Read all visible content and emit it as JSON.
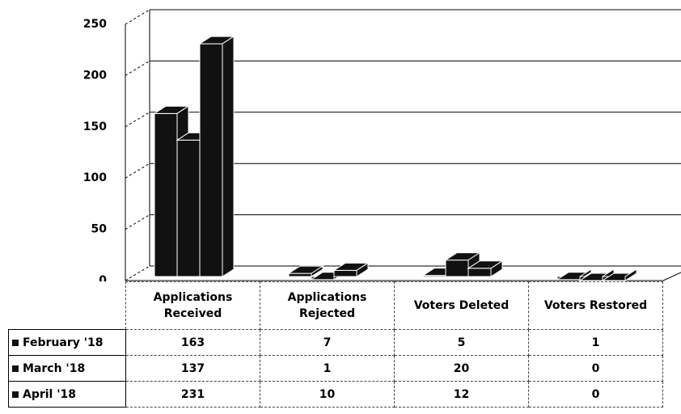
{
  "chart_data": {
    "type": "bar3d",
    "categories": [
      "Applications Received",
      "Applications Rejected",
      "Voters Deleted",
      "Voters Restored"
    ],
    "series": [
      {
        "name": "February '18",
        "color": "#111111",
        "values": [
          163,
          7,
          5,
          1
        ]
      },
      {
        "name": "March '18",
        "color": "#111111",
        "values": [
          137,
          1,
          20,
          0
        ]
      },
      {
        "name": "April '18",
        "color": "#111111",
        "values": [
          231,
          10,
          12,
          0
        ]
      }
    ],
    "ylim": [
      0,
      250
    ],
    "yticks": [
      0,
      50,
      100,
      150,
      200,
      250
    ],
    "grid": true,
    "legend": "table"
  }
}
